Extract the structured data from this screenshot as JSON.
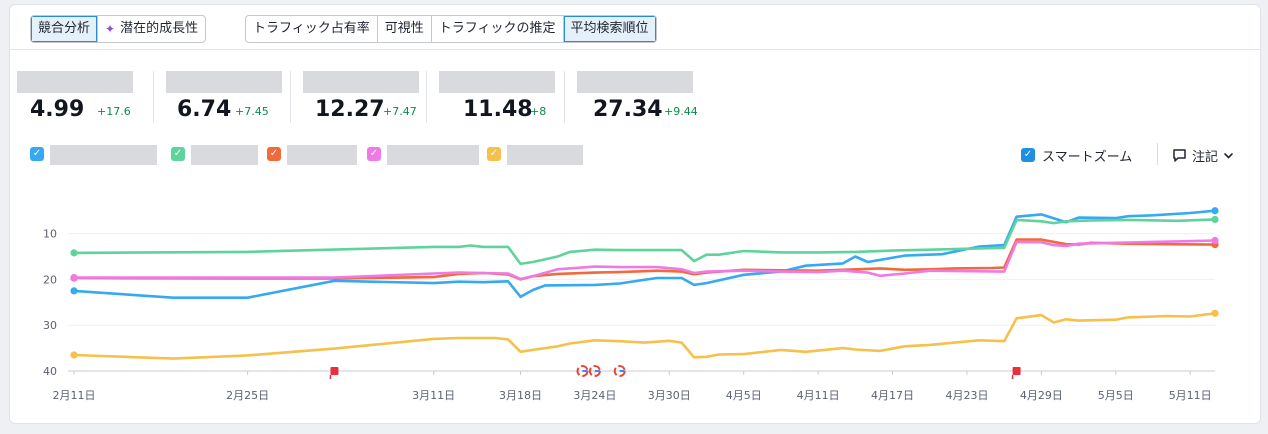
{
  "toolbar": {
    "group1": [
      {
        "label": "競合分析",
        "active": true
      },
      {
        "label": "潜在的成長性",
        "active": false,
        "icon": "sparkle-icon"
      }
    ],
    "group2": [
      {
        "label": "トラフィック占有率",
        "active": false
      },
      {
        "label": "可視性",
        "active": false
      },
      {
        "label": "トラフィックの推定",
        "active": false
      },
      {
        "label": "平均検索順位",
        "active": true
      }
    ]
  },
  "metrics": [
    {
      "value": "4.99",
      "delta": "+17.6"
    },
    {
      "value": "6.74",
      "delta": "+7.45"
    },
    {
      "value": "12.27",
      "delta": "+7.47"
    },
    {
      "value": "11.48",
      "delta": "+8"
    },
    {
      "value": "27.34",
      "delta": "+9.44"
    }
  ],
  "legend_colors": [
    "#36a9f0",
    "#5ed39b",
    "#f06a3c",
    "#ee7ae6",
    "#f6c04c"
  ],
  "smart_zoom": {
    "label": "スマートズーム",
    "checked": true
  },
  "notes": {
    "label": "注記",
    "icon": "comment-icon"
  },
  "chart_data": {
    "type": "line",
    "y_inverted": true,
    "ylim": [
      2,
      40
    ],
    "yticks": [
      10,
      20,
      30,
      40
    ],
    "xlim": [
      "2024-02-11",
      "2024-05-13"
    ],
    "xticks": [
      "2月11日",
      "2月25日",
      "3月11日",
      "3月18日",
      "3月24日",
      "3月30日",
      "4月5日",
      "4月11日",
      "4月17日",
      "4月23日",
      "4月29日",
      "5月5日",
      "5月11日"
    ],
    "xtick_dates": [
      "2024-02-11",
      "2024-02-25",
      "2024-03-11",
      "2024-03-18",
      "2024-03-24",
      "2024-03-30",
      "2024-04-05",
      "2024-04-11",
      "2024-04-17",
      "2024-04-23",
      "2024-04-29",
      "2024-05-05",
      "2024-05-11"
    ],
    "annotations": [
      {
        "type": "flag",
        "date": "2024-03-03",
        "color": "#e8303b"
      },
      {
        "type": "google",
        "date": "2024-03-23"
      },
      {
        "type": "google",
        "date": "2024-03-24"
      },
      {
        "type": "google",
        "date": "2024-03-26"
      },
      {
        "type": "flag",
        "date": "2024-04-27",
        "color": "#e8303b"
      }
    ],
    "series": [
      {
        "color": "#36a9f0",
        "points": [
          [
            "2024-02-11",
            22.5
          ],
          [
            "2024-02-19",
            24.0
          ],
          [
            "2024-02-25",
            24.0
          ],
          [
            "2024-03-03",
            20.3
          ],
          [
            "2024-03-11",
            20.8
          ],
          [
            "2024-03-13",
            20.5
          ],
          [
            "2024-03-15",
            20.6
          ],
          [
            "2024-03-17",
            20.4
          ],
          [
            "2024-03-18",
            23.8
          ],
          [
            "2024-03-19",
            22.3
          ],
          [
            "2024-03-20",
            21.3
          ],
          [
            "2024-03-24",
            21.2
          ],
          [
            "2024-03-26",
            20.9
          ],
          [
            "2024-03-29",
            19.7
          ],
          [
            "2024-03-31",
            19.7
          ],
          [
            "2024-04-01",
            21.2
          ],
          [
            "2024-04-02",
            20.8
          ],
          [
            "2024-04-05",
            19.0
          ],
          [
            "2024-04-08",
            18.3
          ],
          [
            "2024-04-10",
            17.0
          ],
          [
            "2024-04-13",
            16.5
          ],
          [
            "2024-04-14",
            15.0
          ],
          [
            "2024-04-15",
            16.2
          ],
          [
            "2024-04-18",
            14.8
          ],
          [
            "2024-04-21",
            14.5
          ],
          [
            "2024-04-24",
            12.8
          ],
          [
            "2024-04-26",
            12.5
          ],
          [
            "2024-04-27",
            6.3
          ],
          [
            "2024-04-29",
            5.8
          ],
          [
            "2024-05-01",
            7.5
          ],
          [
            "2024-05-02",
            6.5
          ],
          [
            "2024-05-05",
            6.6
          ],
          [
            "2024-05-06",
            6.2
          ],
          [
            "2024-05-08",
            6.0
          ],
          [
            "2024-05-11",
            5.5
          ],
          [
            "2024-05-13",
            5.0
          ]
        ]
      },
      {
        "color": "#5ed39b",
        "points": [
          [
            "2024-02-11",
            14.2
          ],
          [
            "2024-02-25",
            14.0
          ],
          [
            "2024-03-11",
            12.9
          ],
          [
            "2024-03-13",
            12.9
          ],
          [
            "2024-03-14",
            12.6
          ],
          [
            "2024-03-15",
            12.9
          ],
          [
            "2024-03-17",
            12.9
          ],
          [
            "2024-03-18",
            16.6
          ],
          [
            "2024-03-19",
            16.2
          ],
          [
            "2024-03-21",
            15.0
          ],
          [
            "2024-03-22",
            14.0
          ],
          [
            "2024-03-24",
            13.5
          ],
          [
            "2024-03-26",
            13.6
          ],
          [
            "2024-03-28",
            13.6
          ],
          [
            "2024-03-31",
            13.6
          ],
          [
            "2024-04-01",
            16.0
          ],
          [
            "2024-04-02",
            14.6
          ],
          [
            "2024-04-03",
            14.6
          ],
          [
            "2024-04-05",
            13.8
          ],
          [
            "2024-04-08",
            14.1
          ],
          [
            "2024-04-11",
            14.1
          ],
          [
            "2024-04-14",
            14.0
          ],
          [
            "2024-04-17",
            13.7
          ],
          [
            "2024-04-20",
            13.5
          ],
          [
            "2024-04-26",
            13.1
          ],
          [
            "2024-04-27",
            7.0
          ],
          [
            "2024-04-29",
            7.3
          ],
          [
            "2024-04-30",
            7.7
          ],
          [
            "2024-05-01",
            7.3
          ],
          [
            "2024-05-03",
            7.1
          ],
          [
            "2024-05-06",
            7.0
          ],
          [
            "2024-05-10",
            7.2
          ],
          [
            "2024-05-13",
            6.9
          ]
        ]
      },
      {
        "color": "#f06a3c",
        "points": [
          [
            "2024-02-11",
            19.7
          ],
          [
            "2024-02-25",
            19.8
          ],
          [
            "2024-03-03",
            19.8
          ],
          [
            "2024-03-11",
            19.5
          ],
          [
            "2024-03-13",
            18.8
          ],
          [
            "2024-03-15",
            18.6
          ],
          [
            "2024-03-17",
            18.9
          ],
          [
            "2024-03-18",
            20.0
          ],
          [
            "2024-03-19",
            19.3
          ],
          [
            "2024-03-21",
            18.8
          ],
          [
            "2024-03-24",
            18.5
          ],
          [
            "2024-03-26",
            18.4
          ],
          [
            "2024-03-29",
            18.1
          ],
          [
            "2024-03-31",
            18.3
          ],
          [
            "2024-04-01",
            18.9
          ],
          [
            "2024-04-02",
            18.5
          ],
          [
            "2024-04-05",
            17.9
          ],
          [
            "2024-04-08",
            18.0
          ],
          [
            "2024-04-11",
            18.1
          ],
          [
            "2024-04-13",
            17.9
          ],
          [
            "2024-04-16",
            17.6
          ],
          [
            "2024-04-18",
            17.9
          ],
          [
            "2024-04-20",
            17.8
          ],
          [
            "2024-04-22",
            17.6
          ],
          [
            "2024-04-25",
            17.5
          ],
          [
            "2024-04-26",
            17.4
          ],
          [
            "2024-04-27",
            11.3
          ],
          [
            "2024-04-29",
            11.3
          ],
          [
            "2024-05-01",
            12.3
          ],
          [
            "2024-05-02",
            12.4
          ],
          [
            "2024-05-03",
            12.0
          ],
          [
            "2024-05-06",
            12.2
          ],
          [
            "2024-05-09",
            12.3
          ],
          [
            "2024-05-13",
            12.4
          ]
        ]
      },
      {
        "color": "#ee7ae6",
        "points": [
          [
            "2024-02-11",
            19.6
          ],
          [
            "2024-02-25",
            19.6
          ],
          [
            "2024-03-03",
            19.6
          ],
          [
            "2024-03-11",
            18.7
          ],
          [
            "2024-03-13",
            18.5
          ],
          [
            "2024-03-15",
            18.6
          ],
          [
            "2024-03-17",
            18.7
          ],
          [
            "2024-03-18",
            19.9
          ],
          [
            "2024-03-19",
            19.3
          ],
          [
            "2024-03-21",
            17.8
          ],
          [
            "2024-03-24",
            17.2
          ],
          [
            "2024-03-26",
            17.3
          ],
          [
            "2024-03-29",
            17.3
          ],
          [
            "2024-03-31",
            17.8
          ],
          [
            "2024-04-01",
            18.6
          ],
          [
            "2024-04-02",
            18.3
          ],
          [
            "2024-04-05",
            18.1
          ],
          [
            "2024-04-08",
            18.3
          ],
          [
            "2024-04-11",
            18.4
          ],
          [
            "2024-04-13",
            18.1
          ],
          [
            "2024-04-15",
            18.5
          ],
          [
            "2024-04-16",
            19.2
          ],
          [
            "2024-04-18",
            18.7
          ],
          [
            "2024-04-20",
            18.1
          ],
          [
            "2024-04-23",
            18.2
          ],
          [
            "2024-04-26",
            18.3
          ],
          [
            "2024-04-27",
            11.8
          ],
          [
            "2024-04-29",
            11.9
          ],
          [
            "2024-04-30",
            12.5
          ],
          [
            "2024-05-01",
            12.7
          ],
          [
            "2024-05-02",
            12.2
          ],
          [
            "2024-05-05",
            12.0
          ],
          [
            "2024-05-08",
            11.8
          ],
          [
            "2024-05-10",
            11.7
          ],
          [
            "2024-05-13",
            11.5
          ]
        ]
      },
      {
        "color": "#f6c04c",
        "points": [
          [
            "2024-02-11",
            36.5
          ],
          [
            "2024-02-19",
            37.3
          ],
          [
            "2024-02-25",
            36.6
          ],
          [
            "2024-03-03",
            35.1
          ],
          [
            "2024-03-11",
            33.0
          ],
          [
            "2024-03-13",
            32.8
          ],
          [
            "2024-03-16",
            32.8
          ],
          [
            "2024-03-17",
            33.1
          ],
          [
            "2024-03-18",
            35.8
          ],
          [
            "2024-03-19",
            35.4
          ],
          [
            "2024-03-21",
            34.6
          ],
          [
            "2024-03-22",
            34.0
          ],
          [
            "2024-03-24",
            33.3
          ],
          [
            "2024-03-26",
            33.5
          ],
          [
            "2024-03-28",
            33.8
          ],
          [
            "2024-03-30",
            33.4
          ],
          [
            "2024-03-31",
            33.8
          ],
          [
            "2024-04-01",
            37.0
          ],
          [
            "2024-04-02",
            36.9
          ],
          [
            "2024-04-03",
            36.4
          ],
          [
            "2024-04-05",
            36.3
          ],
          [
            "2024-04-08",
            35.4
          ],
          [
            "2024-04-10",
            35.8
          ],
          [
            "2024-04-13",
            35.0
          ],
          [
            "2024-04-14",
            35.3
          ],
          [
            "2024-04-16",
            35.6
          ],
          [
            "2024-04-18",
            34.6
          ],
          [
            "2024-04-20",
            34.3
          ],
          [
            "2024-04-22",
            33.8
          ],
          [
            "2024-04-24",
            33.3
          ],
          [
            "2024-04-26",
            33.5
          ],
          [
            "2024-04-27",
            28.5
          ],
          [
            "2024-04-29",
            27.8
          ],
          [
            "2024-04-30",
            29.4
          ],
          [
            "2024-05-01",
            28.7
          ],
          [
            "2024-05-02",
            29.0
          ],
          [
            "2024-05-05",
            28.8
          ],
          [
            "2024-05-06",
            28.3
          ],
          [
            "2024-05-09",
            28.0
          ],
          [
            "2024-05-11",
            28.1
          ],
          [
            "2024-05-13",
            27.4
          ]
        ]
      }
    ]
  }
}
